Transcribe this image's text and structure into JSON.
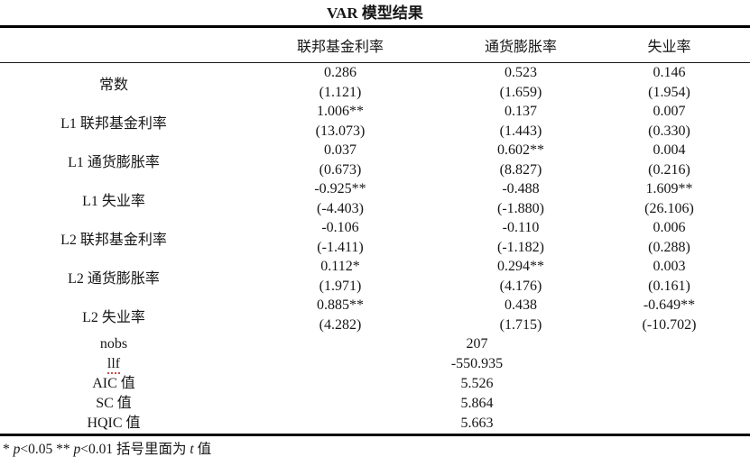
{
  "title": "VAR 模型结果",
  "table": {
    "columns": [
      "联邦基金利率",
      "通货膨胀率",
      "失业率"
    ],
    "coef_rows": [
      {
        "label": "常数",
        "values": [
          "0.286",
          "0.523",
          "0.146"
        ],
        "tstats": [
          "(1.121)",
          "(1.659)",
          "(1.954)"
        ]
      },
      {
        "label": "L1 联邦基金利率",
        "values": [
          "1.006**",
          "0.137",
          "0.007"
        ],
        "tstats": [
          "(13.073)",
          "(1.443)",
          "(0.330)"
        ]
      },
      {
        "label": "L1 通货膨胀率",
        "values": [
          "0.037",
          "0.602**",
          "0.004"
        ],
        "tstats": [
          "(0.673)",
          "(8.827)",
          "(0.216)"
        ]
      },
      {
        "label": "L1 失业率",
        "values": [
          "-0.925**",
          "-0.488",
          "1.609**"
        ],
        "tstats": [
          "(-4.403)",
          "(-1.880)",
          "(26.106)"
        ]
      },
      {
        "label": "L2 联邦基金利率",
        "values": [
          "-0.106",
          "-0.110",
          "0.006"
        ],
        "tstats": [
          "(-1.411)",
          "(-1.182)",
          "(0.288)"
        ]
      },
      {
        "label": "L2 通货膨胀率",
        "values": [
          "0.112*",
          "0.294**",
          "0.003"
        ],
        "tstats": [
          "(1.971)",
          "(4.176)",
          "(0.161)"
        ]
      },
      {
        "label": "L2 失业率",
        "values": [
          "0.885**",
          "0.438",
          "-0.649**"
        ],
        "tstats": [
          "(4.282)",
          "(1.715)",
          "(-10.702)"
        ]
      }
    ],
    "stat_rows": [
      {
        "label": "nobs",
        "value": "207"
      },
      {
        "label": "llf",
        "value": "-550.935"
      },
      {
        "label": "AIC 值",
        "value": "5.526"
      },
      {
        "label": "SC 值",
        "value": "5.864"
      },
      {
        "label": "HQIC 值",
        "value": "5.663"
      }
    ]
  },
  "footnote": {
    "parts": [
      "* ",
      "p",
      "<0.05 ** ",
      "p",
      "<0.01 括号里面为 ",
      "t",
      " 值"
    ]
  }
}
